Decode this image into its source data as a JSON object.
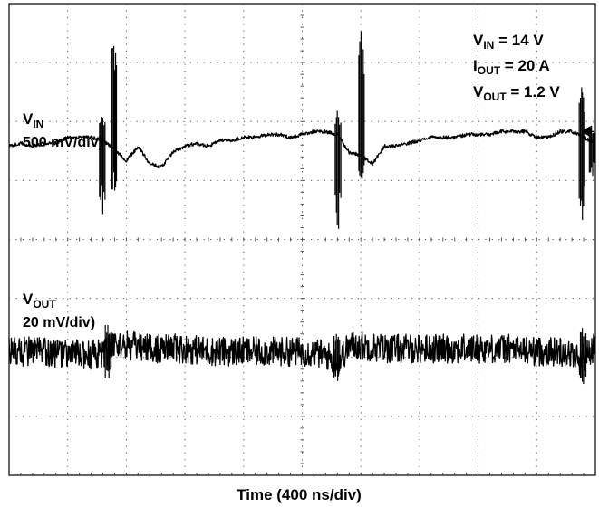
{
  "chart_data": {
    "type": "line",
    "title": "",
    "xlabel": "Time (400 ns/div)",
    "ylabel": "",
    "divisions": {
      "x": 10,
      "y": 8
    },
    "conditions": [
      {
        "sym": "V",
        "sub": "IN",
        "rest": " = 14 V"
      },
      {
        "sym": "I",
        "sub": "OUT",
        "rest": " = 20 A"
      },
      {
        "sym": "V",
        "sub": "OUT",
        "rest": " = 1.2 V"
      }
    ],
    "series": [
      {
        "name": "VIN",
        "label_sym": "V",
        "label_sub": "IN",
        "scale": "500 mV/div)",
        "baseline_div": 5.63,
        "volts_per_div": 0.5,
        "x_div": [
          0,
          0.2,
          0.4,
          0.6,
          0.8,
          1.0,
          1.2,
          1.4,
          1.6,
          1.8,
          2.0,
          2.2,
          2.4,
          2.6,
          2.8,
          3.0,
          3.2,
          3.4,
          3.6,
          3.8,
          4.0,
          4.2,
          4.4,
          4.6,
          4.8,
          5.0,
          5.2,
          5.4,
          5.6,
          5.8,
          6.0,
          6.2,
          6.4,
          6.6,
          6.8,
          7.0,
          7.2,
          7.4,
          7.6,
          7.8,
          8.0,
          8.2,
          8.4,
          8.6,
          8.8,
          9.0,
          9.2,
          9.4,
          9.6,
          9.8,
          10.0
        ],
        "y_div": [
          -0.05,
          0.0,
          -0.05,
          0.0,
          0.0,
          0.1,
          0.1,
          0.1,
          0.05,
          -0.1,
          -0.3,
          -0.05,
          -0.35,
          -0.4,
          -0.15,
          -0.05,
          0.0,
          -0.05,
          0.05,
          0.05,
          0.1,
          0.1,
          0.15,
          0.15,
          0.1,
          0.15,
          0.2,
          0.2,
          0.15,
          -0.15,
          -0.2,
          -0.35,
          -0.05,
          -0.05,
          0.0,
          0.05,
          0.1,
          0.1,
          0.1,
          0.15,
          0.15,
          0.15,
          0.2,
          0.2,
          0.2,
          0.1,
          0.1,
          0.2,
          0.2,
          0.1,
          0.0
        ],
        "spikes": [
          {
            "x_div": 1.6,
            "min_div": -1.2,
            "max_div": 0.45
          },
          {
            "x_div": 1.8,
            "min_div": -0.8,
            "max_div": 1.65
          },
          {
            "x_div": 5.62,
            "min_div": -1.45,
            "max_div": 0.55
          },
          {
            "x_div": 6.02,
            "min_div": -0.6,
            "max_div": 1.9
          },
          {
            "x_div": 9.78,
            "min_div": -1.3,
            "max_div": 0.95
          },
          {
            "x_div": 9.95,
            "min_div": -0.55,
            "max_div": 0.3
          }
        ]
      },
      {
        "name": "VOUT",
        "label_sym": "V",
        "label_sub": "OUT",
        "scale": "20 mV/div)",
        "baseline_div": 2.1,
        "volts_per_div": 0.02,
        "noise_pp_div": 0.5,
        "x_div": [
          0,
          0.5,
          1.0,
          1.5,
          1.7,
          1.8,
          2.0,
          2.5,
          3.0,
          3.5,
          4.0,
          4.5,
          5.0,
          5.4,
          5.6,
          5.8,
          6.0,
          6.5,
          7.0,
          7.5,
          8.0,
          8.5,
          9.0,
          9.5,
          9.75,
          10.0
        ],
        "y_div": [
          0.0,
          0.0,
          -0.05,
          -0.05,
          0.0,
          0.15,
          0.1,
          0.05,
          0.05,
          0.0,
          0.0,
          0.0,
          0.0,
          -0.05,
          -0.2,
          0.1,
          0.1,
          0.05,
          0.05,
          0.05,
          0.05,
          0.05,
          0.0,
          0.0,
          -0.15,
          0.1
        ],
        "spikes": [
          {
            "x_div": 1.7,
            "min_div": -0.45,
            "max_div": 0.45
          },
          {
            "x_div": 5.6,
            "min_div": -0.5,
            "max_div": 0.3
          },
          {
            "x_div": 9.8,
            "min_div": -0.55,
            "max_div": 0.4
          }
        ]
      }
    ],
    "trigger_marker": {
      "x_div": 10,
      "y_div": 5.83
    },
    "grid": true,
    "legend": "top-right"
  }
}
